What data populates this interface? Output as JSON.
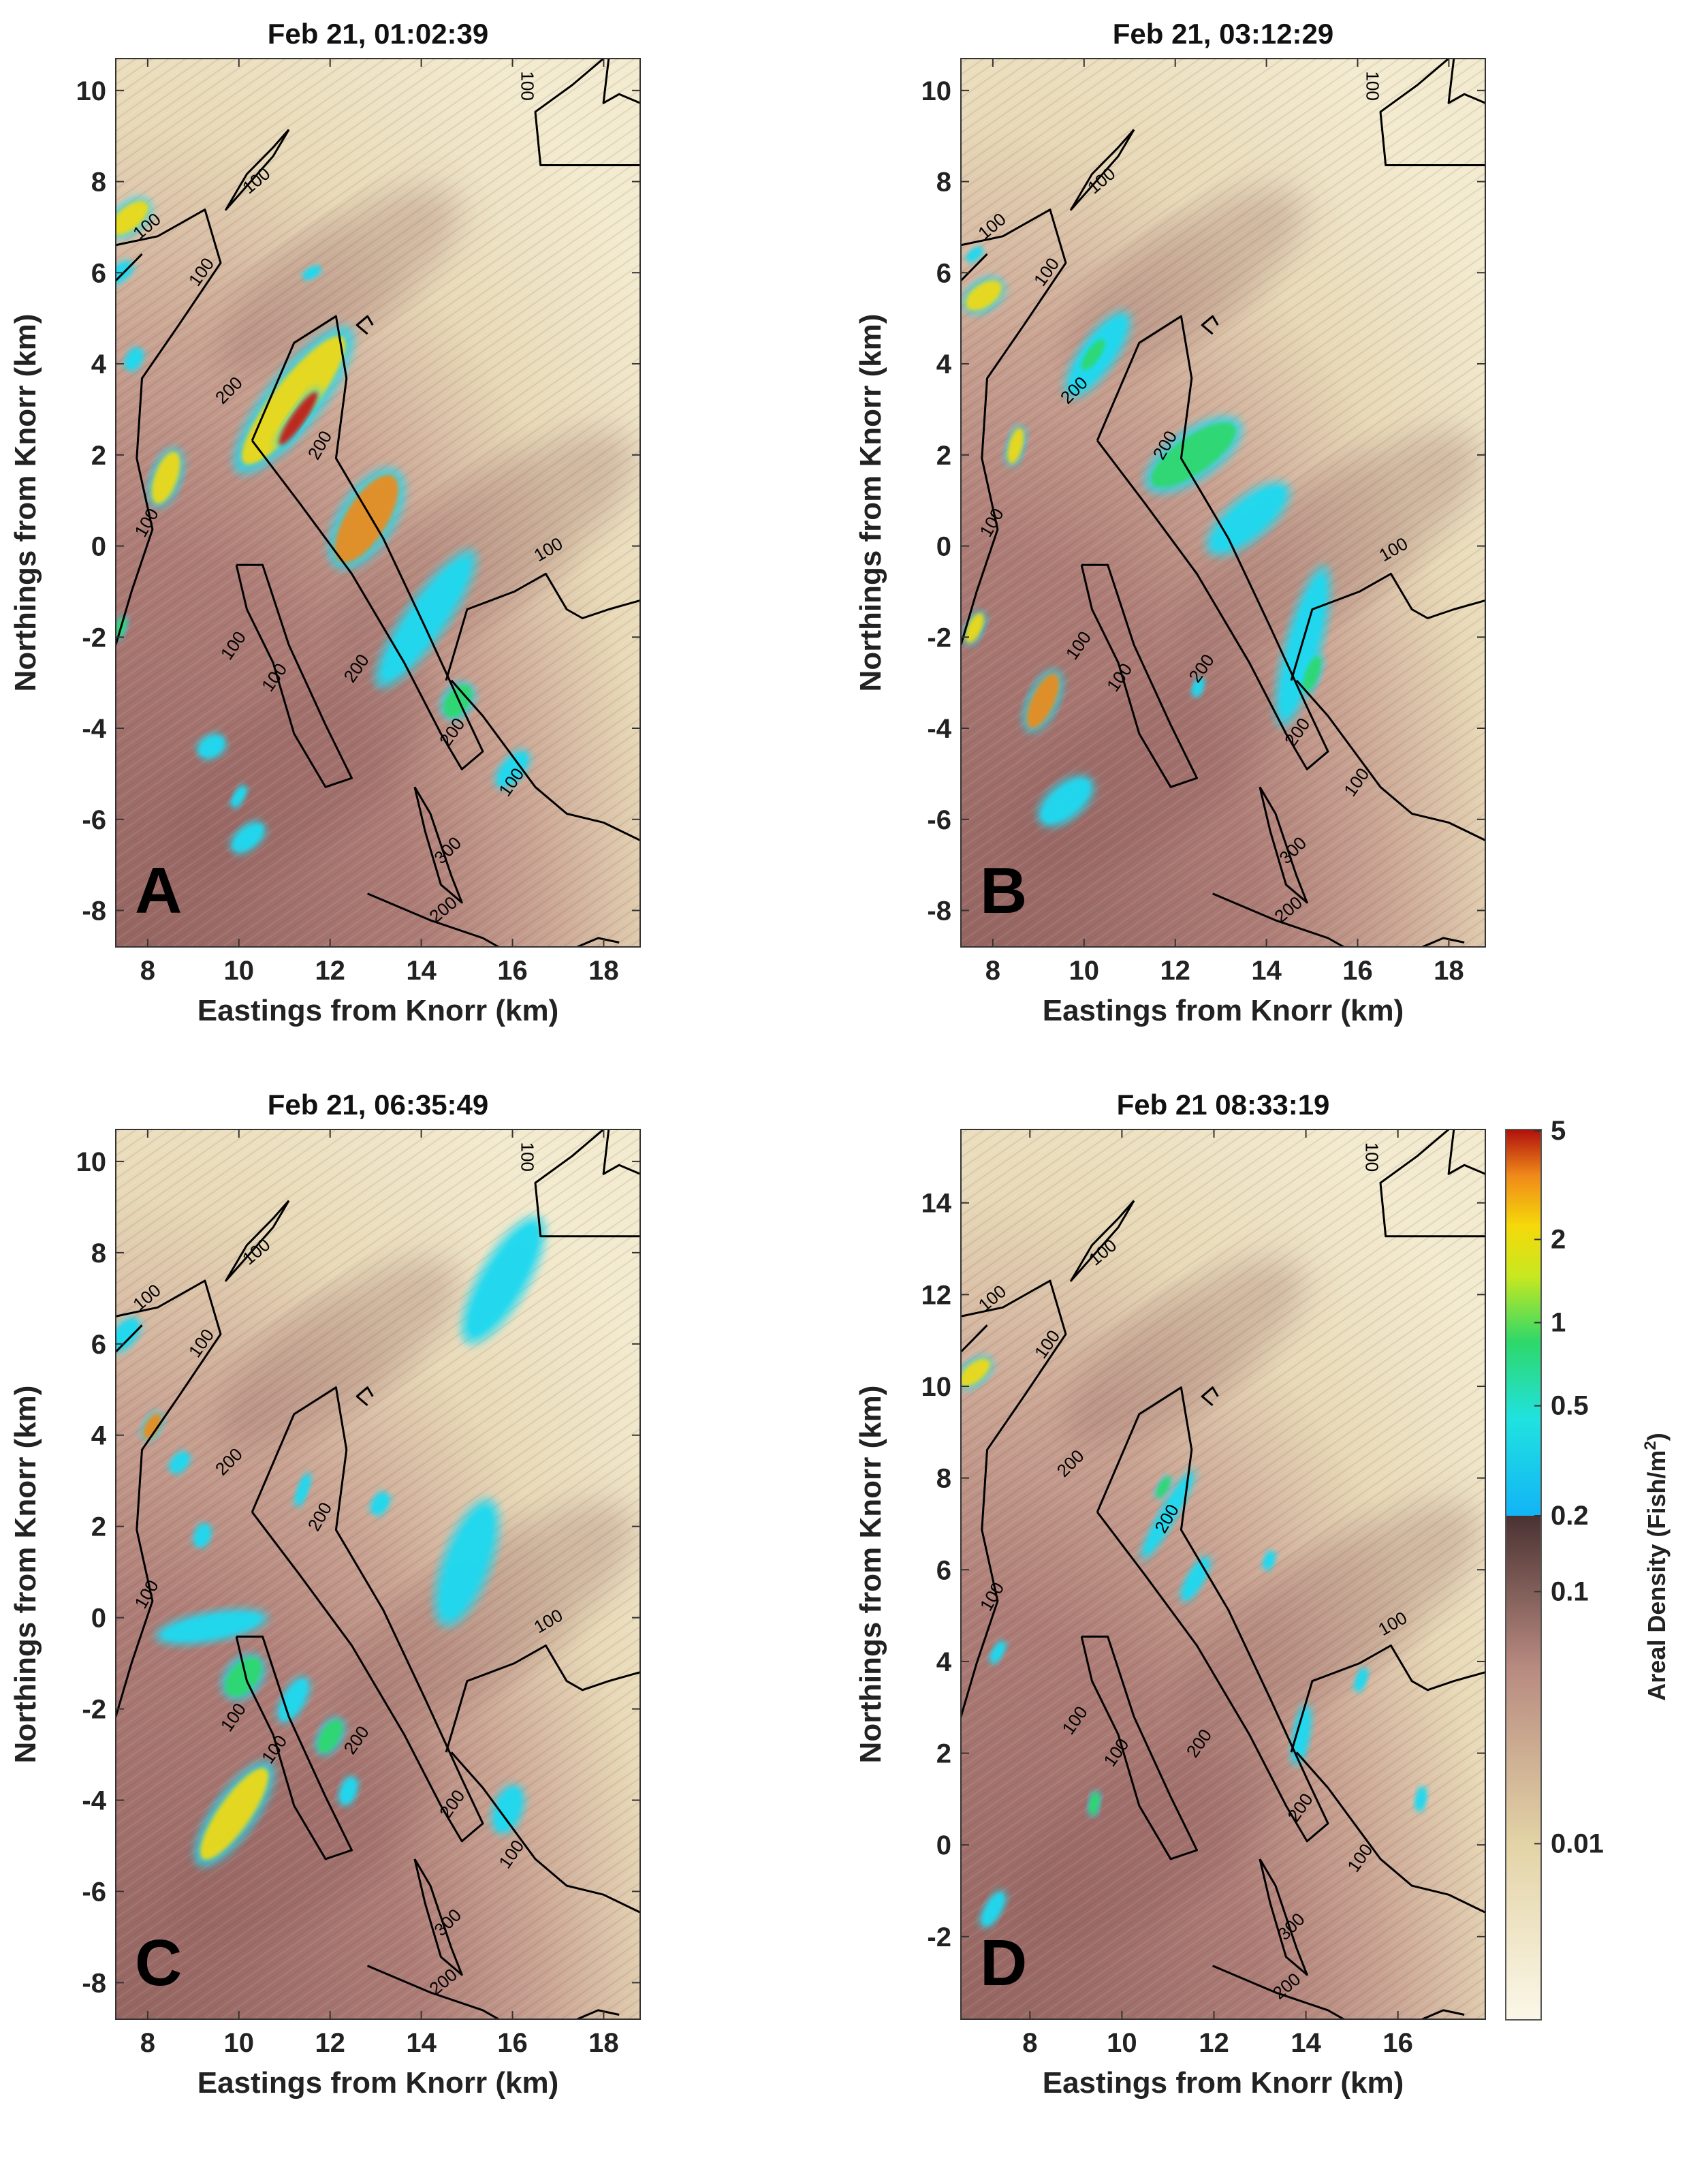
{
  "figure": {
    "colors": {
      "background_light": "#efe6c4",
      "background_mid": "#b98982",
      "background_dark": "#8a5a58",
      "contour": "#000000",
      "cyan": "#20d8f0",
      "green": "#2ed86a",
      "yellow": "#f5d90a",
      "orange": "#f08a1a",
      "red": "#c81a10"
    }
  },
  "chart_data": [
    {
      "type": "heatmap",
      "panel_label": "A",
      "title": "Feb 21, 01:02:39",
      "xlabel": "Eastings from Knorr (km)",
      "ylabel": "Northings from Knorr (km)",
      "xlim": [
        7.3,
        18.8
      ],
      "ylim": [
        -8.8,
        10.7
      ],
      "xticks": [
        8,
        10,
        12,
        14,
        16,
        18
      ],
      "yticks": [
        -8,
        -6,
        -4,
        -2,
        0,
        2,
        4,
        6,
        8,
        10
      ],
      "contour_labels": [
        {
          "text": "100",
          "x": 16.3,
          "y": 10.1,
          "rot": 90
        },
        {
          "text": "100",
          "x": 10.4,
          "y": 8.0,
          "rot": -40
        },
        {
          "text": "100",
          "x": 8.0,
          "y": 7.0,
          "rot": -40
        },
        {
          "text": "100",
          "x": 9.2,
          "y": 6.0,
          "rot": -55
        },
        {
          "text": "200",
          "x": 9.8,
          "y": 3.4,
          "rot": -45
        },
        {
          "text": "200",
          "x": 11.8,
          "y": 2.2,
          "rot": -60
        },
        {
          "text": "100",
          "x": 8.0,
          "y": 0.5,
          "rot": -60
        },
        {
          "text": "100",
          "x": 9.9,
          "y": -2.2,
          "rot": -55
        },
        {
          "text": "100",
          "x": 10.8,
          "y": -2.9,
          "rot": -55
        },
        {
          "text": "200",
          "x": 12.6,
          "y": -2.7,
          "rot": -55
        },
        {
          "text": "200",
          "x": 14.7,
          "y": -4.1,
          "rot": -55
        },
        {
          "text": "100",
          "x": 16.0,
          "y": -5.2,
          "rot": -55
        },
        {
          "text": "300",
          "x": 14.6,
          "y": -6.7,
          "rot": -45
        },
        {
          "text": "200",
          "x": 14.5,
          "y": -8.0,
          "rot": -40
        },
        {
          "text": "100",
          "x": 16.8,
          "y": -0.1,
          "rot": -30
        }
      ],
      "fish_schools": [
        {
          "x": 7.6,
          "y": 7.2,
          "len": 1.0,
          "wid": 0.5,
          "ang": -40,
          "level": "yellow"
        },
        {
          "x": 7.4,
          "y": 6.0,
          "len": 0.6,
          "wid": 0.3,
          "ang": -40,
          "level": "cyan"
        },
        {
          "x": 7.7,
          "y": 4.1,
          "len": 0.5,
          "wid": 0.3,
          "ang": -60,
          "level": "cyan"
        },
        {
          "x": 8.4,
          "y": 1.5,
          "len": 1.2,
          "wid": 0.5,
          "ang": -70,
          "level": "yellow"
        },
        {
          "x": 11.2,
          "y": 3.2,
          "len": 3.5,
          "wid": 0.9,
          "ang": -52,
          "level": "yellow"
        },
        {
          "x": 11.3,
          "y": 2.8,
          "len": 1.4,
          "wid": 0.3,
          "ang": -55,
          "level": "red"
        },
        {
          "x": 12.8,
          "y": 0.6,
          "len": 2.2,
          "wid": 0.9,
          "ang": -58,
          "level": "orange"
        },
        {
          "x": 14.1,
          "y": -1.6,
          "len": 3.2,
          "wid": 0.7,
          "ang": -55,
          "level": "cyan"
        },
        {
          "x": 14.8,
          "y": -3.4,
          "len": 0.8,
          "wid": 0.5,
          "ang": -55,
          "level": "green"
        },
        {
          "x": 16.0,
          "y": -4.9,
          "len": 0.9,
          "wid": 0.4,
          "ang": -50,
          "level": "cyan"
        },
        {
          "x": 9.4,
          "y": -4.4,
          "len": 0.6,
          "wid": 0.4,
          "ang": -30,
          "level": "cyan"
        },
        {
          "x": 10.2,
          "y": -6.4,
          "len": 0.8,
          "wid": 0.4,
          "ang": -40,
          "level": "cyan"
        },
        {
          "x": 10.0,
          "y": -5.5,
          "len": 0.5,
          "wid": 0.2,
          "ang": -60,
          "level": "cyan"
        },
        {
          "x": 7.4,
          "y": -1.8,
          "len": 0.5,
          "wid": 0.2,
          "ang": -70,
          "level": "green"
        },
        {
          "x": 11.6,
          "y": 6.0,
          "len": 0.4,
          "wid": 0.2,
          "ang": -30,
          "level": "cyan"
        }
      ]
    },
    {
      "type": "heatmap",
      "panel_label": "B",
      "title": "Feb 21, 03:12:29",
      "xlabel": "Eastings from Knorr (km)",
      "ylabel": "Northings from Knorr (km)",
      "xlim": [
        7.3,
        18.8
      ],
      "ylim": [
        -8.8,
        10.7
      ],
      "xticks": [
        8,
        10,
        12,
        14,
        16,
        18
      ],
      "yticks": [
        -8,
        -6,
        -4,
        -2,
        0,
        2,
        4,
        6,
        8,
        10
      ],
      "contour_labels": [
        {
          "text": "100",
          "x": 16.3,
          "y": 10.1,
          "rot": 90
        },
        {
          "text": "100",
          "x": 10.4,
          "y": 8.0,
          "rot": -40
        },
        {
          "text": "100",
          "x": 8.0,
          "y": 7.0,
          "rot": -40
        },
        {
          "text": "100",
          "x": 9.2,
          "y": 6.0,
          "rot": -55
        },
        {
          "text": "200",
          "x": 9.8,
          "y": 3.4,
          "rot": -45
        },
        {
          "text": "200",
          "x": 11.8,
          "y": 2.2,
          "rot": -60
        },
        {
          "text": "100",
          "x": 8.0,
          "y": 0.5,
          "rot": -60
        },
        {
          "text": "100",
          "x": 9.9,
          "y": -2.2,
          "rot": -55
        },
        {
          "text": "100",
          "x": 10.8,
          "y": -2.9,
          "rot": -55
        },
        {
          "text": "200",
          "x": 12.6,
          "y": -2.7,
          "rot": -55
        },
        {
          "text": "200",
          "x": 14.7,
          "y": -4.1,
          "rot": -55
        },
        {
          "text": "100",
          "x": 16.0,
          "y": -5.2,
          "rot": -55
        },
        {
          "text": "300",
          "x": 14.6,
          "y": -6.7,
          "rot": -45
        },
        {
          "text": "200",
          "x": 14.5,
          "y": -8.0,
          "rot": -40
        },
        {
          "text": "100",
          "x": 16.8,
          "y": -0.1,
          "rot": -30
        }
      ],
      "fish_schools": [
        {
          "x": 7.8,
          "y": 5.5,
          "len": 0.9,
          "wid": 0.5,
          "ang": -35,
          "level": "yellow"
        },
        {
          "x": 7.6,
          "y": 6.4,
          "len": 0.4,
          "wid": 0.2,
          "ang": -40,
          "level": "cyan"
        },
        {
          "x": 8.5,
          "y": 2.2,
          "len": 0.8,
          "wid": 0.3,
          "ang": -75,
          "level": "yellow"
        },
        {
          "x": 10.3,
          "y": 4.2,
          "len": 2.0,
          "wid": 0.6,
          "ang": -55,
          "level": "cyan"
        },
        {
          "x": 10.2,
          "y": 4.2,
          "len": 0.8,
          "wid": 0.3,
          "ang": -55,
          "level": "green"
        },
        {
          "x": 12.4,
          "y": 2.0,
          "len": 2.2,
          "wid": 0.8,
          "ang": -35,
          "level": "green"
        },
        {
          "x": 13.6,
          "y": 0.6,
          "len": 2.0,
          "wid": 0.7,
          "ang": -40,
          "level": "cyan"
        },
        {
          "x": 14.8,
          "y": -2.2,
          "len": 3.2,
          "wid": 0.6,
          "ang": -75,
          "level": "cyan"
        },
        {
          "x": 15.0,
          "y": -2.8,
          "len": 0.8,
          "wid": 0.3,
          "ang": -70,
          "level": "green"
        },
        {
          "x": 9.1,
          "y": -3.4,
          "len": 1.3,
          "wid": 0.5,
          "ang": -65,
          "level": "orange"
        },
        {
          "x": 9.6,
          "y": -5.6,
          "len": 1.3,
          "wid": 0.6,
          "ang": -40,
          "level": "cyan"
        },
        {
          "x": 7.6,
          "y": -1.8,
          "len": 0.7,
          "wid": 0.3,
          "ang": -65,
          "level": "yellow"
        },
        {
          "x": 12.5,
          "y": -3.1,
          "len": 0.4,
          "wid": 0.2,
          "ang": -70,
          "level": "cyan"
        }
      ]
    },
    {
      "type": "heatmap",
      "panel_label": "C",
      "title": "Feb 21, 06:35:49",
      "xlabel": "Eastings from Knorr (km)",
      "ylabel": "Northings from Knorr (km)",
      "xlim": [
        7.3,
        18.8
      ],
      "ylim": [
        -8.8,
        10.7
      ],
      "xticks": [
        8,
        10,
        12,
        14,
        16,
        18
      ],
      "yticks": [
        -8,
        -6,
        -4,
        -2,
        0,
        2,
        4,
        6,
        8,
        10
      ],
      "contour_labels": [
        {
          "text": "100",
          "x": 16.3,
          "y": 10.1,
          "rot": 90
        },
        {
          "text": "100",
          "x": 10.4,
          "y": 8.0,
          "rot": -40
        },
        {
          "text": "100",
          "x": 8.0,
          "y": 7.0,
          "rot": -40
        },
        {
          "text": "100",
          "x": 9.2,
          "y": 6.0,
          "rot": -55
        },
        {
          "text": "200",
          "x": 9.8,
          "y": 3.4,
          "rot": -45
        },
        {
          "text": "200",
          "x": 11.8,
          "y": 2.2,
          "rot": -60
        },
        {
          "text": "100",
          "x": 8.0,
          "y": 0.5,
          "rot": -60
        },
        {
          "text": "100",
          "x": 9.9,
          "y": -2.2,
          "rot": -55
        },
        {
          "text": "100",
          "x": 10.8,
          "y": -2.9,
          "rot": -55
        },
        {
          "text": "200",
          "x": 12.6,
          "y": -2.7,
          "rot": -55
        },
        {
          "text": "200",
          "x": 14.7,
          "y": -4.1,
          "rot": -55
        },
        {
          "text": "100",
          "x": 16.0,
          "y": -5.2,
          "rot": -55
        },
        {
          "text": "300",
          "x": 14.6,
          "y": -6.7,
          "rot": -45
        },
        {
          "text": "200",
          "x": 14.5,
          "y": -8.0,
          "rot": -40
        },
        {
          "text": "100",
          "x": 16.8,
          "y": -0.1,
          "rot": -30
        }
      ],
      "fish_schools": [
        {
          "x": 15.8,
          "y": 7.4,
          "len": 2.8,
          "wid": 0.8,
          "ang": -60,
          "level": "cyan"
        },
        {
          "x": 15.0,
          "y": 1.2,
          "len": 2.6,
          "wid": 0.8,
          "ang": -70,
          "level": "cyan"
        },
        {
          "x": 8.1,
          "y": 4.2,
          "len": 0.6,
          "wid": 0.3,
          "ang": -60,
          "level": "orange"
        },
        {
          "x": 8.7,
          "y": 3.4,
          "len": 0.5,
          "wid": 0.3,
          "ang": -50,
          "level": "cyan"
        },
        {
          "x": 9.2,
          "y": 1.8,
          "len": 0.5,
          "wid": 0.3,
          "ang": -70,
          "level": "cyan"
        },
        {
          "x": 7.5,
          "y": 6.2,
          "len": 0.8,
          "wid": 0.4,
          "ang": -50,
          "level": "cyan"
        },
        {
          "x": 9.4,
          "y": -0.2,
          "len": 2.2,
          "wid": 0.5,
          "ang": -10,
          "level": "cyan"
        },
        {
          "x": 10.1,
          "y": -1.3,
          "len": 1.0,
          "wid": 0.6,
          "ang": -50,
          "level": "green"
        },
        {
          "x": 11.2,
          "y": -1.8,
          "len": 1.0,
          "wid": 0.4,
          "ang": -60,
          "level": "cyan"
        },
        {
          "x": 12.0,
          "y": -2.6,
          "len": 0.8,
          "wid": 0.4,
          "ang": -60,
          "level": "green"
        },
        {
          "x": 12.4,
          "y": -3.8,
          "len": 0.6,
          "wid": 0.3,
          "ang": -70,
          "level": "cyan"
        },
        {
          "x": 9.9,
          "y": -4.3,
          "len": 2.4,
          "wid": 0.7,
          "ang": -55,
          "level": "yellow"
        },
        {
          "x": 15.9,
          "y": -4.2,
          "len": 1.0,
          "wid": 0.5,
          "ang": -70,
          "level": "cyan"
        },
        {
          "x": 13.1,
          "y": 2.5,
          "len": 0.5,
          "wid": 0.3,
          "ang": -60,
          "level": "cyan"
        },
        {
          "x": 11.4,
          "y": 2.8,
          "len": 0.7,
          "wid": 0.2,
          "ang": -70,
          "level": "cyan"
        }
      ]
    },
    {
      "type": "heatmap",
      "panel_label": "D",
      "title": "Feb 21 08:33:19",
      "xlabel": "Eastings from Knorr (km)",
      "ylabel": "Northings from Knorr (km)",
      "xlim": [
        6.5,
        17.9
      ],
      "ylim": [
        -3.8,
        15.6
      ],
      "xticks": [
        8,
        10,
        12,
        14,
        16
      ],
      "yticks": [
        -2,
        0,
        2,
        4,
        6,
        8,
        10,
        12,
        14
      ],
      "contour_labels": [
        {
          "text": "100",
          "x": 15.4,
          "y": 15.0,
          "rot": 90
        },
        {
          "text": "100",
          "x": 9.6,
          "y": 12.9,
          "rot": -40
        },
        {
          "text": "100",
          "x": 7.2,
          "y": 11.9,
          "rot": -40
        },
        {
          "text": "100",
          "x": 8.4,
          "y": 10.9,
          "rot": -55
        },
        {
          "text": "200",
          "x": 8.9,
          "y": 8.3,
          "rot": -45
        },
        {
          "text": "200",
          "x": 11.0,
          "y": 7.1,
          "rot": -60
        },
        {
          "text": "100",
          "x": 7.2,
          "y": 5.4,
          "rot": -60
        },
        {
          "text": "100",
          "x": 9.0,
          "y": 2.7,
          "rot": -55
        },
        {
          "text": "100",
          "x": 9.9,
          "y": 2.0,
          "rot": -55
        },
        {
          "text": "200",
          "x": 11.7,
          "y": 2.2,
          "rot": -55
        },
        {
          "text": "200",
          "x": 13.9,
          "y": 0.8,
          "rot": -55
        },
        {
          "text": "100",
          "x": 15.2,
          "y": -0.3,
          "rot": -55
        },
        {
          "text": "300",
          "x": 13.7,
          "y": -1.8,
          "rot": -45
        },
        {
          "text": "200",
          "x": 13.6,
          "y": -3.1,
          "rot": -40
        },
        {
          "text": "100",
          "x": 15.9,
          "y": 4.8,
          "rot": -30
        }
      ],
      "fish_schools": [
        {
          "x": 6.8,
          "y": 10.3,
          "len": 0.8,
          "wid": 0.4,
          "ang": -40,
          "level": "yellow"
        },
        {
          "x": 11.0,
          "y": 7.2,
          "len": 2.0,
          "wid": 0.3,
          "ang": -60,
          "level": "cyan"
        },
        {
          "x": 11.6,
          "y": 5.8,
          "len": 1.0,
          "wid": 0.3,
          "ang": -60,
          "level": "cyan"
        },
        {
          "x": 10.9,
          "y": 7.8,
          "len": 0.5,
          "wid": 0.2,
          "ang": -60,
          "level": "green"
        },
        {
          "x": 13.9,
          "y": 2.4,
          "len": 1.2,
          "wid": 0.3,
          "ang": -80,
          "level": "cyan"
        },
        {
          "x": 9.4,
          "y": 0.9,
          "len": 0.5,
          "wid": 0.2,
          "ang": -80,
          "level": "green"
        },
        {
          "x": 7.2,
          "y": -1.4,
          "len": 0.8,
          "wid": 0.3,
          "ang": -60,
          "level": "cyan"
        },
        {
          "x": 7.3,
          "y": 4.2,
          "len": 0.5,
          "wid": 0.2,
          "ang": -60,
          "level": "cyan"
        },
        {
          "x": 16.5,
          "y": 1.0,
          "len": 0.5,
          "wid": 0.2,
          "ang": -80,
          "level": "cyan"
        },
        {
          "x": 15.2,
          "y": 3.6,
          "len": 0.5,
          "wid": 0.2,
          "ang": -70,
          "level": "cyan"
        },
        {
          "x": 13.2,
          "y": 6.2,
          "len": 0.4,
          "wid": 0.2,
          "ang": -70,
          "level": "cyan"
        }
      ]
    }
  ],
  "colorbar": {
    "label": "Areal Density (Fish/m",
    "label_sup": "2",
    "label_end": ")",
    "scale": "log",
    "range": [
      0.002,
      5
    ],
    "threshold": 0.2,
    "ticks": [
      {
        "value": 5,
        "label": "5"
      },
      {
        "value": 2,
        "label": "2"
      },
      {
        "value": 1,
        "label": "1"
      },
      {
        "value": 0.5,
        "label": "0.5"
      },
      {
        "value": 0.2,
        "label": "0.2"
      },
      {
        "value": 0.1,
        "label": "0.1"
      },
      {
        "value": 0.01,
        "label": "0.01"
      }
    ]
  }
}
